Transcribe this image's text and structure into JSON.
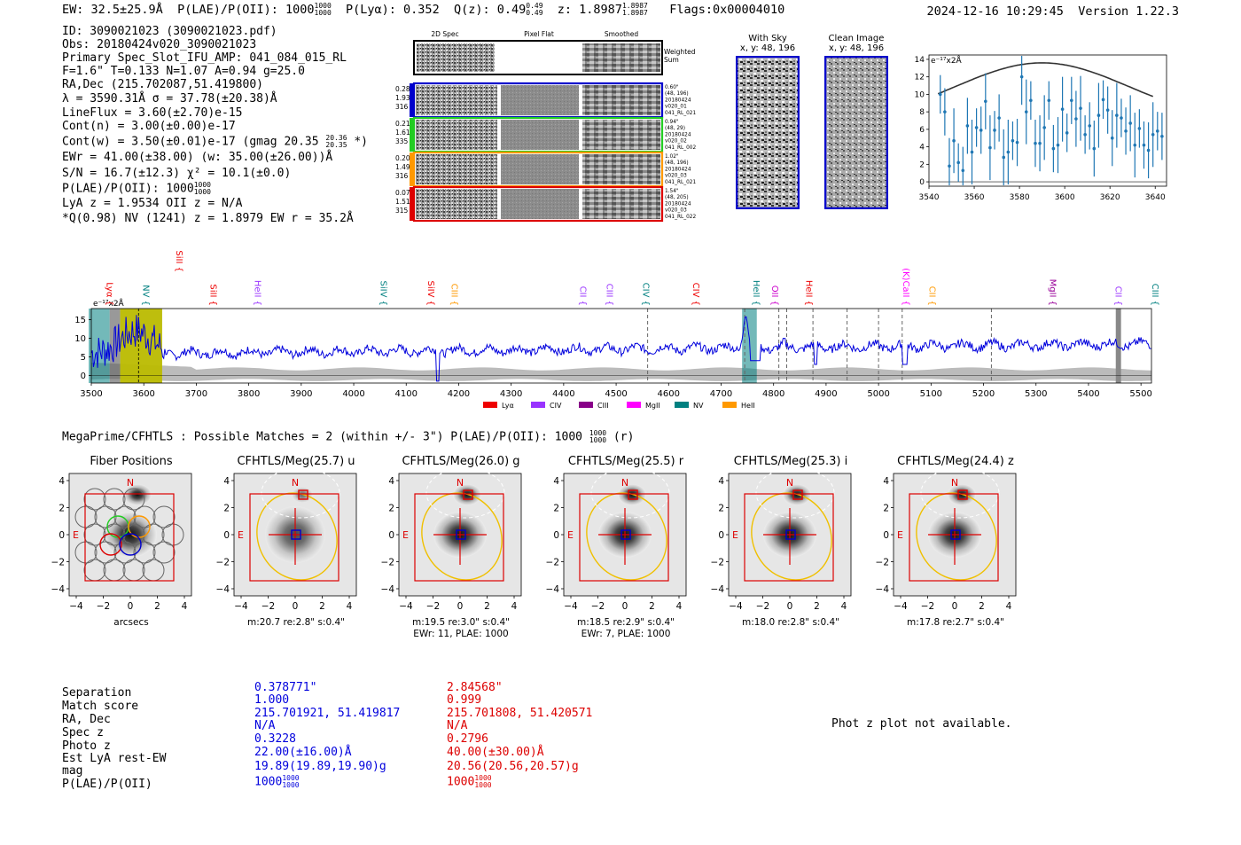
{
  "header": {
    "ew": "EW: 32.5±25.9Å",
    "plae_label": "P(LAE)/P(OII): 1000",
    "plae_sup": "1000",
    "plae_sub": "1000",
    "plya": "P(Lyα): 0.352",
    "qz_label": "Q(z): 0.49",
    "qz_sup": "0.49",
    "qz_sub": "0.49",
    "z_label": "z: 1.8987",
    "z_sup": "1.8987",
    "z_sub": "1.8987",
    "flags": "Flags:0x00004010",
    "timestamp": "2024-12-16 10:29:45",
    "version": "Version 1.22.3"
  },
  "info": {
    "id": "ID: 3090021023 (3090021023.pdf)",
    "obs": "Obs: 20180424v020_3090021023",
    "primary": "Primary Spec_Slot_IFU_AMP: 041_084_015_RL",
    "fwhm": "F=1.6\"  T=0.133  N=1.07  A=0.94  g=25.0",
    "radec": "RA,Dec (215.702087,51.419800)",
    "lambda": "λ = 3590.31Å  σ = 37.78(±20.38)Å",
    "lineflux": "LineFlux = 3.60(±2.70)e-15",
    "contn": "Cont(n) = 3.00(±0.00)e-17",
    "contw": "Cont(w) = 3.50(±0.01)e-17 (gmag 20.35",
    "contw_sup": "20.36",
    "contw_sub": "20.35",
    "contw_end": "*)",
    "ewr": "EWr = 41.00(±38.00) (w: 35.00(±26.00))Å",
    "sn": "S/N = 16.7(±12.3)  χ² = 10.1(±0.0)",
    "plae": "P(LAE)/P(OII): 1000",
    "plae_sup": "1000",
    "plae_sub": "1000",
    "lya": "LyA z = 1.9534  OII z = N/A",
    "q": "*Q(0.98) NV  (1241) z = 1.8979  EW r = 35.2Å"
  },
  "cutout_panel": {
    "col_headers": [
      "2D Spec",
      "Pixel Flat",
      "Smoothed"
    ],
    "weighted_sum": "Weighted Sum",
    "rows": [
      {
        "left": [
          "0.28",
          "1.93",
          "316"
        ],
        "right": [
          "0.60\"",
          "(48, 196)",
          "20180424",
          "v020_01",
          "041_RL_021"
        ],
        "color": "#0000cc"
      },
      {
        "left": [
          "0.21",
          "1.61",
          "335"
        ],
        "right": [
          "0.94\"",
          "(48, 29)",
          "20180424",
          "v020_02",
          "041_RL_002"
        ],
        "color": "#22cc22"
      },
      {
        "left": [
          "0.20",
          "1.49",
          "316"
        ],
        "right": [
          "1.02\"",
          "(48, 196)",
          "20180424",
          "v020_03",
          "041_RL_021"
        ],
        "color": "#ff9900"
      },
      {
        "left": [
          "0.07",
          "1.51",
          "315"
        ],
        "right": [
          "1.54\"",
          "(48, 205)",
          "20180424",
          "v020_03",
          "041_RL_022"
        ],
        "color": "#dd0000"
      }
    ]
  },
  "sky_panel": {
    "with_sky_title": "With Sky",
    "with_sky_xy": "x, y: 48, 196",
    "clean_title": "Clean Image",
    "clean_xy": "x, y: 48, 196"
  },
  "zoom_chart": {
    "ylabel": "e⁻¹⁷x2Å",
    "xticks": [
      "3540",
      "3560",
      "3580",
      "3600",
      "3620",
      "3640"
    ],
    "yticks": [
      "0",
      "2",
      "4",
      "6",
      "8",
      "10",
      "12",
      "14"
    ]
  },
  "full_spectrum": {
    "ylabel": "e⁻¹⁷x2Å",
    "xticks": [
      "3500",
      "3600",
      "3700",
      "3800",
      "3900",
      "4000",
      "4100",
      "4200",
      "4300",
      "4400",
      "4500",
      "4600",
      "4700",
      "4800",
      "4900",
      "5000",
      "5100",
      "5200",
      "5300",
      "5400",
      "5500"
    ],
    "yticks": [
      "0",
      "5",
      "10",
      "15"
    ],
    "lines": [
      {
        "name": "Lyα",
        "x": 3523,
        "color": "#ee0000"
      },
      {
        "name": "NV",
        "x": 3592,
        "color": "#008080"
      },
      {
        "name": "SiII",
        "x": 3655,
        "color": "#ee0000"
      },
      {
        "name": "SiII",
        "x": 3720,
        "color": "#ee0000"
      },
      {
        "name": "HeII",
        "x": 3805,
        "color": "#9933ff"
      },
      {
        "name": "SiIV",
        "x": 4045,
        "color": "#008080"
      },
      {
        "name": "SiIV",
        "x": 4135,
        "color": "#ee0000"
      },
      {
        "name": "CIII",
        "x": 4180,
        "color": "#ff9900"
      },
      {
        "name": "CII",
        "x": 4425,
        "color": "#9933ff"
      },
      {
        "name": "CIII",
        "x": 4475,
        "color": "#9933ff"
      },
      {
        "name": "CIV",
        "x": 4545,
        "color": "#008080"
      },
      {
        "name": "CIV",
        "x": 4640,
        "color": "#ee0000"
      },
      {
        "name": "HeII",
        "x": 4755,
        "color": "#008080"
      },
      {
        "name": "OII",
        "x": 4790,
        "color": "#cc00cc"
      },
      {
        "name": "HeII",
        "x": 4855,
        "color": "#ee0000"
      },
      {
        "name": "(K)CaII",
        "x": 5040,
        "color": "#ff00ff"
      },
      {
        "name": "CII",
        "x": 5090,
        "color": "#ff9900"
      },
      {
        "name": "MgII",
        "x": 5320,
        "color": "#990099"
      },
      {
        "name": "CII",
        "x": 5445,
        "color": "#9933ff"
      },
      {
        "name": "CIII",
        "x": 5515,
        "color": "#008080"
      }
    ],
    "legend": [
      {
        "name": "Lyα",
        "color": "#ee0000"
      },
      {
        "name": "CIV",
        "color": "#9933ff"
      },
      {
        "name": "CIII",
        "color": "#880088"
      },
      {
        "name": "MgII",
        "color": "#ff00ff"
      },
      {
        "name": "NV",
        "color": "#008080"
      },
      {
        "name": "HeII",
        "color": "#ff9900"
      }
    ]
  },
  "chart_data": [
    {
      "type": "scatter",
      "title": "",
      "xlabel": "",
      "ylabel": "e⁻¹⁷x2Å",
      "xlim": [
        3540,
        3645
      ],
      "ylim": [
        -0.5,
        14.5
      ],
      "x": [
        3545,
        3547,
        3549,
        3551,
        3553,
        3555,
        3557,
        3559,
        3561,
        3563,
        3565,
        3567,
        3569,
        3571,
        3573,
        3575,
        3577,
        3579,
        3581,
        3583,
        3585,
        3587,
        3589,
        3591,
        3593,
        3595,
        3597,
        3599,
        3601,
        3603,
        3605,
        3607,
        3609,
        3611,
        3613,
        3615,
        3617,
        3619,
        3621,
        3623,
        3625,
        3627,
        3629,
        3631,
        3633,
        3635,
        3637,
        3639,
        3641,
        3643
      ],
      "values": [
        10,
        8,
        1.8,
        4.7,
        2.2,
        1.3,
        6.4,
        3.4,
        6.2,
        5.9,
        9.2,
        3.9,
        5.9,
        7.3,
        2.8,
        3.4,
        4.7,
        4.5,
        12,
        8,
        9.3,
        4.4,
        4.4,
        6.2,
        9.3,
        3.8,
        4.2,
        8.3,
        5.6,
        9.3,
        7.2,
        8.4,
        5.4,
        6.4,
        3.8,
        7.6,
        9.4,
        8.2,
        5,
        7.6,
        7.3,
        5.8,
        6.7,
        4.2,
        6.1,
        4.2,
        3.6,
        5.4,
        5.8,
        5.2
      ],
      "fit_label": "gaussian fit"
    },
    {
      "type": "line",
      "title": "",
      "xlabel": "",
      "ylabel": "e⁻¹⁷x2Å",
      "xlim": [
        3500,
        5520
      ],
      "ylim": [
        -2,
        18
      ]
    }
  ],
  "megaprime": {
    "title": "MegaPrime/CFHTLS : Possible Matches = 2 (within +/- 3\")  P(LAE)/P(OII): 1000",
    "plae_sup": "1000",
    "plae_sub": "1000",
    "plae_end": "(r)"
  },
  "thumbs": [
    {
      "title": "Fiber Positions",
      "foot1": "arcsecs",
      "foot2": ""
    },
    {
      "title": "CFHTLS/Meg(25.7) u",
      "foot1": "m:20.7  re:2.8\"  s:0.4\"",
      "foot2": ""
    },
    {
      "title": "CFHTLS/Meg(26.0) g",
      "foot1": "m:19.5  re:3.0\"  s:0.4\"",
      "foot2": "EWr: 11, PLAE: 1000"
    },
    {
      "title": "CFHTLS/Meg(25.5) r",
      "foot1": "m:18.5  re:2.9\"  s:0.4\"",
      "foot2": "EWr: 7, PLAE: 1000"
    },
    {
      "title": "CFHTLS/Meg(25.3) i",
      "foot1": "m:18.0  re:2.8\"  s:0.4\"",
      "foot2": ""
    },
    {
      "title": "CFHTLS/Meg(24.4) z",
      "foot1": "m:17.8  re:2.7\"  s:0.4\"",
      "foot2": ""
    }
  ],
  "thumb_axis": {
    "ticks": [
      "4",
      "2",
      "0",
      "−2",
      "−4"
    ],
    "xticks": [
      "−4",
      "−2",
      "0",
      "2",
      "4"
    ],
    "n_label": "N",
    "e_label": "E"
  },
  "matches": {
    "labels": [
      "Separation",
      "Match score",
      "RA, Dec",
      "Spec z",
      "Photo z",
      "Est LyA rest-EW",
      "mag",
      "P(LAE)/P(OII)"
    ],
    "blue": [
      "0.378771\"",
      "1.000",
      "215.701921, 51.419817",
      "N/A",
      "0.3228",
      "22.00(±16.00)Å",
      "19.89(19.89,19.90)g",
      "1000"
    ],
    "red": [
      "2.84568\"",
      "0.999",
      "215.701808, 51.420571",
      "N/A",
      "0.2796",
      "40.00(±30.00)Å",
      "20.56(20.56,20.57)g",
      "1000"
    ],
    "plae_sup": "1000",
    "plae_sub": "1000",
    "phot_note": "Phot z plot not available."
  }
}
